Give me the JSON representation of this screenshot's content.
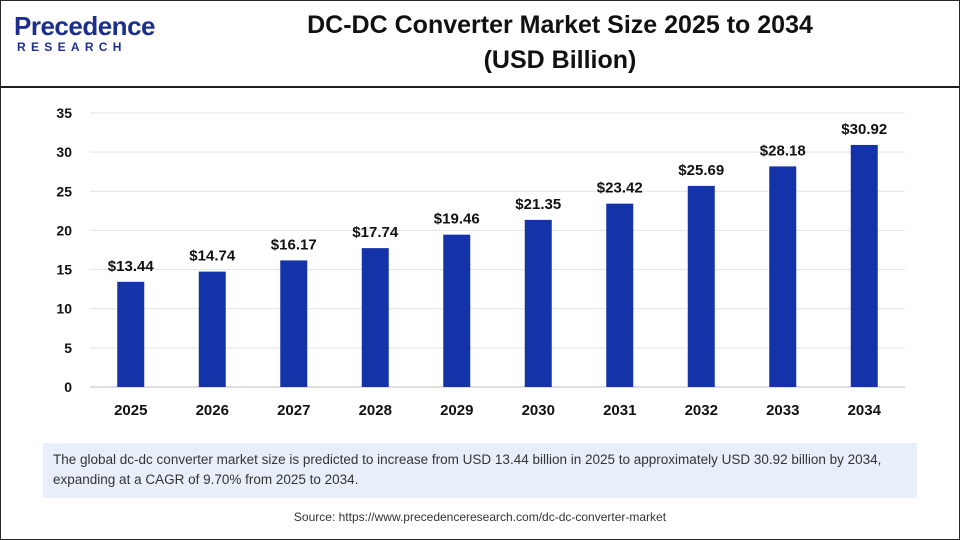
{
  "header": {
    "logo_top": "Precedence",
    "logo_bottom": "RESEARCH",
    "title_line1": "DC-DC Converter Market Size 2025 to 2034",
    "title_line2": "(USD Billion)"
  },
  "summary": "The global dc-dc converter market size is predicted to increase from USD 13.44 billion in 2025 to approximately USD 30.92 billion by 2034, expanding at a CAGR of 9.70% from 2025 to 2034.",
  "source": "Source: https://www.precedenceresearch.com/dc-dc-converter-market",
  "colors": {
    "bar": "#1433a8",
    "brand": "#1d2f8c",
    "accent": "#e5453c"
  },
  "chart_data": {
    "type": "bar",
    "categories": [
      "2025",
      "2026",
      "2027",
      "2028",
      "2029",
      "2030",
      "2031",
      "2032",
      "2033",
      "2034"
    ],
    "values": [
      13.44,
      14.74,
      16.17,
      17.74,
      19.46,
      21.35,
      23.42,
      25.69,
      28.18,
      30.92
    ],
    "data_labels": [
      "$13.44",
      "$14.74",
      "$16.17",
      "$17.74",
      "$19.46",
      "$21.35",
      "$23.42",
      "$25.69",
      "$28.18",
      "$30.92"
    ],
    "yticks": [
      "0",
      "5",
      "10",
      "15",
      "20",
      "25",
      "30",
      "35"
    ],
    "ylim": [
      0,
      35
    ],
    "grid": true,
    "legend": "none"
  }
}
